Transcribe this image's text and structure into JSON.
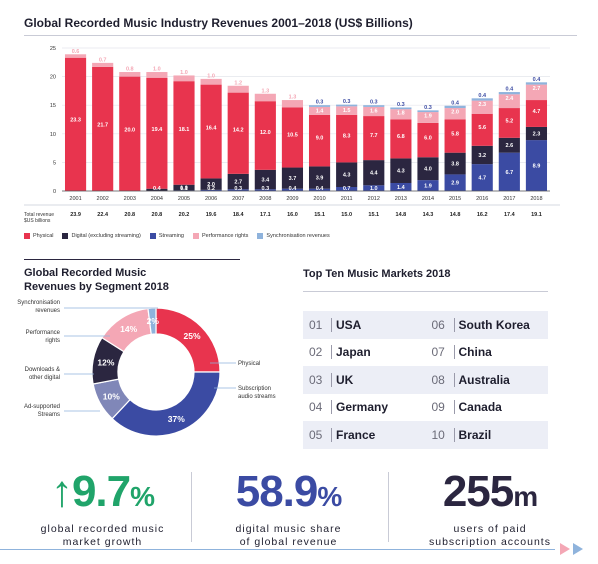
{
  "bar_title": "Global Recorded Music Industry Revenues 2001–2018 (US$ Billions)",
  "total_label_line1": "Total revenue",
  "total_label_line2": "$US billions",
  "legend": [
    {
      "label": "Physical",
      "color": "#e8344e"
    },
    {
      "label": "Digital (excluding streaming)",
      "color": "#2b2640"
    },
    {
      "label": "Streaming",
      "color": "#3b4ba3"
    },
    {
      "label": "Performance rights",
      "color": "#f4a7b5"
    },
    {
      "label": "Synchronisation revenues",
      "color": "#8fb3dc"
    }
  ],
  "donut_title_line1": "Global Recorded Music",
  "donut_title_line2": "Revenues by Segment 2018",
  "markets_title": "Top Ten Music Markets 2018",
  "markets": [
    {
      "num": "01",
      "name": "USA"
    },
    {
      "num": "02",
      "name": "Japan"
    },
    {
      "num": "03",
      "name": "UK"
    },
    {
      "num": "04",
      "name": "Germany"
    },
    {
      "num": "05",
      "name": "France"
    },
    {
      "num": "06",
      "name": "South Korea"
    },
    {
      "num": "07",
      "name": "China"
    },
    {
      "num": "08",
      "name": "Australia"
    },
    {
      "num": "09",
      "name": "Canada"
    },
    {
      "num": "10",
      "name": "Brazil"
    }
  ],
  "stats": [
    {
      "value": "9.7",
      "unit": "%",
      "arrow": "↑",
      "color": "#20a46a",
      "caption1": "global recorded music",
      "caption2": "market growth"
    },
    {
      "value": "58.9",
      "unit": "%",
      "arrow": "",
      "color": "#3b4ba3",
      "caption1": "digital music share",
      "caption2": "of global revenue"
    },
    {
      "value": "255",
      "unit": "m",
      "arrow": "",
      "color": "#2b2640",
      "caption1": "users of paid",
      "caption2": "subscription accounts"
    }
  ],
  "chart_data": [
    {
      "type": "bar",
      "stacked": true,
      "title": "Global Recorded Music Industry Revenues 2001–2018 (US$ Billions)",
      "categories": [
        "2001",
        "2002",
        "2003",
        "2004",
        "2005",
        "2006",
        "2007",
        "2008",
        "2009",
        "2010",
        "2011",
        "2012",
        "2013",
        "2014",
        "2015",
        "2016",
        "2017",
        "2018"
      ],
      "ylim": [
        0,
        25
      ],
      "yticks": [
        0,
        5,
        10,
        15,
        20,
        25
      ],
      "series": [
        {
          "name": "Physical",
          "color": "#e8344e",
          "values": [
            23.3,
            21.7,
            20.0,
            19.4,
            18.1,
            16.4,
            14.2,
            12.0,
            10.5,
            9.0,
            8.3,
            7.7,
            6.8,
            6.0,
            5.8,
            5.6,
            5.2,
            4.7
          ]
        },
        {
          "name": "Digital (excluding streaming)",
          "color": "#2b2640",
          "values": [
            0,
            0,
            0,
            0.4,
            1.0,
            2.0,
            2.7,
            3.4,
            3.7,
            3.9,
            4.3,
            4.4,
            4.3,
            4.0,
            3.8,
            3.2,
            2.6,
            2.3
          ]
        },
        {
          "name": "Streaming",
          "color": "#3b4ba3",
          "values": [
            0,
            0,
            0,
            0,
            0.1,
            0.2,
            0.3,
            0.3,
            0.4,
            0.4,
            0.7,
            1.0,
            1.4,
            1.9,
            2.9,
            4.7,
            6.7,
            8.9
          ]
        },
        {
          "name": "Performance rights",
          "color": "#f4a7b5",
          "values": [
            0.6,
            0.7,
            0.8,
            1.0,
            1.0,
            1.0,
            1.2,
            1.3,
            1.3,
            1.4,
            1.5,
            1.6,
            1.8,
            1.9,
            2.0,
            2.3,
            2.4,
            2.7
          ]
        },
        {
          "name": "Synchronisation revenues",
          "color": "#8fb3dc",
          "values": [
            0,
            0,
            0,
            0,
            0,
            0,
            0,
            0,
            0,
            0.3,
            0.3,
            0.3,
            0.3,
            0.3,
            0.4,
            0.4,
            0.4,
            0.4
          ]
        }
      ],
      "segment_labels": [
        [
          "23.3",
          "21.7",
          "20.0",
          "19.4",
          "18.1",
          "16.4",
          "14.2",
          "12.0",
          "10.5",
          "9.0",
          "8.3",
          "7.7",
          "6.8",
          "6.0",
          "5.8",
          "5.6",
          "5.2",
          "4.7"
        ],
        [
          "",
          "",
          "",
          "0.4",
          "1.0",
          "2.0",
          "2.7",
          "3.4",
          "3.7",
          "3.9",
          "4.3",
          "4.4",
          "4.3",
          "4.0",
          "3.8",
          "3.2",
          "2.6",
          "2.3"
        ],
        [
          "",
          "",
          "",
          "",
          "0.1",
          "0.2",
          "0.3",
          "0.3",
          "0.4",
          "0.4",
          "0.7",
          "1.0",
          "1.4",
          "1.9",
          "2.9",
          "4.7",
          "6.7",
          "8.9"
        ],
        [
          "0.6",
          "0.7",
          "0.8",
          "1.0",
          "1.0",
          "1.0",
          "1.2",
          "1.3",
          "1.3",
          "1.4",
          "1.5",
          "1.6",
          "1.8",
          "1.9",
          "2.0",
          "2.3",
          "2.4",
          "2.7"
        ],
        [
          "",
          "",
          "",
          "",
          "",
          "",
          "",
          "",
          "",
          "0.3",
          "0.3",
          "0.3",
          "0.3",
          "0.3",
          "0.4",
          "0.4",
          "0.4",
          "0.4"
        ]
      ],
      "totals": [
        "23.9",
        "22.4",
        "20.8",
        "20.8",
        "20.2",
        "19.6",
        "18.4",
        "17.1",
        "16.0",
        "15.1",
        "15.0",
        "15.1",
        "14.8",
        "14.3",
        "14.8",
        "16.2",
        "17.4",
        "19.1"
      ]
    },
    {
      "type": "pie",
      "donut": true,
      "title": "Global Recorded Music Revenues by Segment 2018",
      "slices": [
        {
          "name": "Physical",
          "value": 25,
          "label": "25%",
          "color": "#e8344e"
        },
        {
          "name": "Subscription audio streams",
          "value": 37,
          "label": "37%",
          "color": "#3b4ba3"
        },
        {
          "name": "Ad-supported Streams",
          "value": 10,
          "label": "10%",
          "color": "#8087b8"
        },
        {
          "name": "Downloads & other digital",
          "value": 12,
          "label": "12%",
          "color": "#2b2640"
        },
        {
          "name": "Performance rights",
          "value": 14,
          "label": "14%",
          "color": "#f4a7b5"
        },
        {
          "name": "Synchronisation revenues",
          "value": 2,
          "label": "2%",
          "color": "#8fb3dc"
        }
      ],
      "annotations": [
        "Synchronisation revenues",
        "Performance rights",
        "Downloads & other digital",
        "Ad-supported Streams",
        "Physical",
        "Subscription audio streams"
      ]
    }
  ]
}
